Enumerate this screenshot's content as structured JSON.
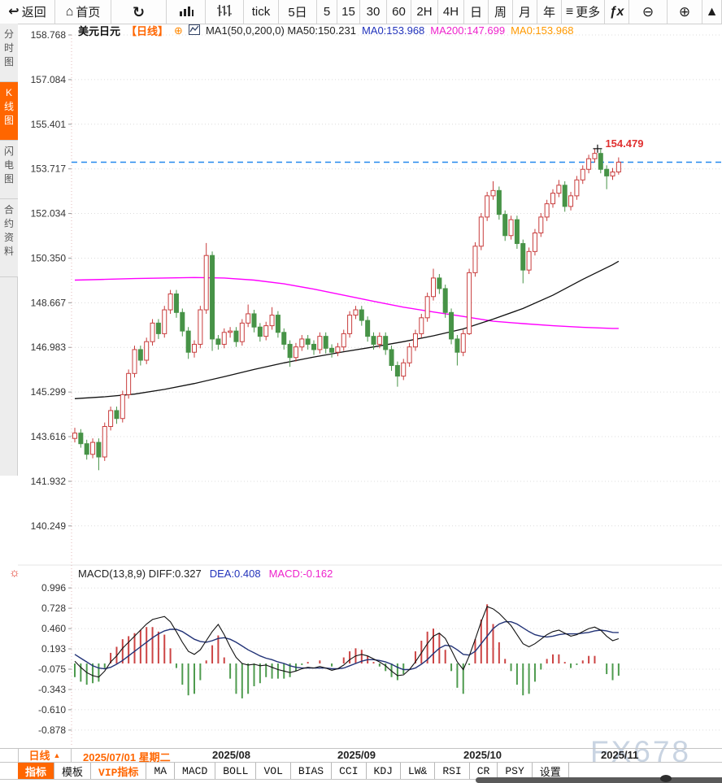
{
  "window": {
    "watermark": "FX678"
  },
  "toolbar": {
    "items": [
      {
        "name": "back-button",
        "icon": "back",
        "label": "返回"
      },
      {
        "name": "home-button",
        "icon": "home",
        "label": "首页"
      },
      {
        "name": "refresh-button",
        "icon": "refresh",
        "label": ""
      },
      {
        "name": "bar-chart-button",
        "icon": "bar-chart",
        "label": ""
      },
      {
        "name": "tick-chart-button",
        "icon": "candle-volume",
        "label": ""
      },
      {
        "name": "period-tick",
        "icon": "",
        "label": "tick"
      },
      {
        "name": "period-5day",
        "icon": "",
        "label": "5日"
      },
      {
        "name": "period-5min",
        "icon": "",
        "label": "5"
      },
      {
        "name": "period-15min",
        "icon": "",
        "label": "15"
      },
      {
        "name": "period-30min",
        "icon": "",
        "label": "30"
      },
      {
        "name": "period-60min",
        "icon": "",
        "label": "60"
      },
      {
        "name": "period-2h",
        "icon": "",
        "label": "2H"
      },
      {
        "name": "period-4h",
        "icon": "",
        "label": "4H"
      },
      {
        "name": "period-day",
        "icon": "",
        "label": "日"
      },
      {
        "name": "period-week",
        "icon": "",
        "label": "周"
      },
      {
        "name": "period-month",
        "icon": "",
        "label": "月"
      },
      {
        "name": "period-year",
        "icon": "",
        "label": "年"
      },
      {
        "name": "more-button",
        "icon": "menu",
        "label": "更多"
      },
      {
        "name": "indicator-fx-button",
        "icon": "fx",
        "label": ""
      },
      {
        "name": "zoom-out-button",
        "icon": "zoom-out",
        "label": ""
      },
      {
        "name": "zoom-in-button",
        "icon": "zoom-in",
        "label": ""
      },
      {
        "name": "draw-tool-button",
        "icon": "triangle",
        "label": ""
      }
    ]
  },
  "sidebar": {
    "items": [
      {
        "label": "分时图",
        "active": false
      },
      {
        "label": "K线图",
        "active": true
      },
      {
        "label": "闪电图",
        "active": false
      },
      {
        "label": "合约资料",
        "active": false
      }
    ]
  },
  "chart_header": {
    "symbol": "美元日元",
    "period_tag": "【日线】",
    "ma_settings": "MA1(50,0,200,0)  MA50:150.231",
    "ma0_blue": "MA0:153.968",
    "ma200": "MA200:147.699",
    "ma0_orange": "MA0:153.968"
  },
  "macd_header": {
    "title": "MACD(13,8,9)  DIFF:0.327",
    "dea": "DEA:0.408",
    "macd": "MACD:-0.162"
  },
  "status_bar": {
    "period": "日线",
    "arrow": "▲",
    "date": "2025/07/01 星期二"
  },
  "bottom_tabs": [
    {
      "label": "指标",
      "style": "selected"
    },
    {
      "label": "模板",
      "style": ""
    },
    {
      "label": "VIP指标",
      "style": "vip"
    },
    {
      "label": "MA",
      "style": ""
    },
    {
      "label": "MACD",
      "style": ""
    },
    {
      "label": "BOLL",
      "style": ""
    },
    {
      "label": "VOL",
      "style": ""
    },
    {
      "label": "BIAS",
      "style": ""
    },
    {
      "label": "CCI",
      "style": ""
    },
    {
      "label": "KDJ",
      "style": ""
    },
    {
      "label": "LW&",
      "style": ""
    },
    {
      "label": "RSI",
      "style": ""
    },
    {
      "label": "CR",
      "style": ""
    },
    {
      "label": "PSY",
      "style": ""
    },
    {
      "label": "设置",
      "style": ""
    }
  ],
  "chart_data": {
    "type": "candlestick+macd",
    "title": "美元日元 日线 (USD/JPY daily)",
    "y_axis_price": [
      158.768,
      157.084,
      155.401,
      153.717,
      152.034,
      150.35,
      148.667,
      146.983,
      145.299,
      143.616,
      141.932,
      140.249
    ],
    "y_axis_macd": [
      0.996,
      0.728,
      0.46,
      0.193,
      -0.075,
      -0.343,
      -0.61,
      -0.878
    ],
    "x_axis_months": [
      "2025/08",
      "2025/09",
      "2025/10",
      "2025/11"
    ],
    "current_price": 153.968,
    "high_annotation": "154.479",
    "high_annotation_value": 154.479,
    "legend_position": "top-left",
    "grid": "dotted-horizontal",
    "candles": [
      [
        143.55,
        143.95,
        143.4,
        143.75
      ],
      [
        143.75,
        143.9,
        143.2,
        143.35
      ],
      [
        143.35,
        143.5,
        142.75,
        142.95
      ],
      [
        142.95,
        143.55,
        142.8,
        143.4
      ],
      [
        143.4,
        143.55,
        142.35,
        142.85
      ],
      [
        142.85,
        144.15,
        142.7,
        144.0
      ],
      [
        144.0,
        144.75,
        143.85,
        144.6
      ],
      [
        144.6,
        144.75,
        144.1,
        144.3
      ],
      [
        144.3,
        145.35,
        144.15,
        145.2
      ],
      [
        145.2,
        146.15,
        145.05,
        146.0
      ],
      [
        146.0,
        147.05,
        145.85,
        146.9
      ],
      [
        146.9,
        147.05,
        146.3,
        146.5
      ],
      [
        146.5,
        147.35,
        146.35,
        147.2
      ],
      [
        147.2,
        148.05,
        147.05,
        147.9
      ],
      [
        147.9,
        148.05,
        147.3,
        147.5
      ],
      [
        147.5,
        148.55,
        147.35,
        148.4
      ],
      [
        148.4,
        149.15,
        148.25,
        149.0
      ],
      [
        149.0,
        149.15,
        148.1,
        148.3
      ],
      [
        148.3,
        148.45,
        147.4,
        147.6
      ],
      [
        147.6,
        147.75,
        146.55,
        146.8
      ],
      [
        146.8,
        147.25,
        146.6,
        147.1
      ],
      [
        147.1,
        148.55,
        146.95,
        148.4
      ],
      [
        148.4,
        150.92,
        148.25,
        150.45
      ],
      [
        150.45,
        150.6,
        146.85,
        147.3
      ],
      [
        147.3,
        147.45,
        146.9,
        147.1
      ],
      [
        147.1,
        147.7,
        146.95,
        147.55
      ],
      [
        147.55,
        147.75,
        147.35,
        147.6
      ],
      [
        147.6,
        147.75,
        147.0,
        147.2
      ],
      [
        147.2,
        148.05,
        147.05,
        147.9
      ],
      [
        147.9,
        148.6,
        147.75,
        148.25
      ],
      [
        148.25,
        148.4,
        147.55,
        147.75
      ],
      [
        147.75,
        147.9,
        147.2,
        147.4
      ],
      [
        147.4,
        147.95,
        147.25,
        147.8
      ],
      [
        147.8,
        148.5,
        147.65,
        148.2
      ],
      [
        148.2,
        148.35,
        147.35,
        147.55
      ],
      [
        147.55,
        147.7,
        146.9,
        147.1
      ],
      [
        147.1,
        147.25,
        146.25,
        146.6
      ],
      [
        146.6,
        147.15,
        146.45,
        147.0
      ],
      [
        147.0,
        147.45,
        146.85,
        147.3
      ],
      [
        147.3,
        147.45,
        146.9,
        147.1
      ],
      [
        147.1,
        147.25,
        146.7,
        146.9
      ],
      [
        146.9,
        147.55,
        146.75,
        147.4
      ],
      [
        147.4,
        147.55,
        146.75,
        146.95
      ],
      [
        146.95,
        147.1,
        146.6,
        146.8
      ],
      [
        146.8,
        147.15,
        146.65,
        147.0
      ],
      [
        147.0,
        147.65,
        146.85,
        147.5
      ],
      [
        147.5,
        148.35,
        147.35,
        148.2
      ],
      [
        148.2,
        148.55,
        148.05,
        148.4
      ],
      [
        148.4,
        148.55,
        147.8,
        148.0
      ],
      [
        148.0,
        148.15,
        147.2,
        147.4
      ],
      [
        147.4,
        147.55,
        146.9,
        147.1
      ],
      [
        147.1,
        147.55,
        146.95,
        147.4
      ],
      [
        147.4,
        147.55,
        146.7,
        146.9
      ],
      [
        146.9,
        147.05,
        146.1,
        146.3
      ],
      [
        146.3,
        146.45,
        145.5,
        145.9
      ],
      [
        145.9,
        146.55,
        145.75,
        146.4
      ],
      [
        146.4,
        147.15,
        146.25,
        147.0
      ],
      [
        147.0,
        147.65,
        146.85,
        147.5
      ],
      [
        147.5,
        148.25,
        147.35,
        148.1
      ],
      [
        148.1,
        149.05,
        147.95,
        148.9
      ],
      [
        148.9,
        149.95,
        148.75,
        149.6
      ],
      [
        149.6,
        149.75,
        149.0,
        149.2
      ],
      [
        149.2,
        149.35,
        148.1,
        148.3
      ],
      [
        148.3,
        148.45,
        147.1,
        147.3
      ],
      [
        147.3,
        147.45,
        146.3,
        146.8
      ],
      [
        146.8,
        147.65,
        146.65,
        147.5
      ],
      [
        147.5,
        149.95,
        147.45,
        149.8
      ],
      [
        149.8,
        150.95,
        149.65,
        150.8
      ],
      [
        150.8,
        152.05,
        150.65,
        151.9
      ],
      [
        151.9,
        152.85,
        151.75,
        152.7
      ],
      [
        152.7,
        153.25,
        152.55,
        152.9
      ],
      [
        152.9,
        153.05,
        151.8,
        152.0
      ],
      [
        152.0,
        152.15,
        151.0,
        151.2
      ],
      [
        151.2,
        151.95,
        151.05,
        151.8
      ],
      [
        151.8,
        151.95,
        150.7,
        150.9
      ],
      [
        150.9,
        151.05,
        149.4,
        149.9
      ],
      [
        149.9,
        150.75,
        149.75,
        150.6
      ],
      [
        150.6,
        151.45,
        150.45,
        151.3
      ],
      [
        151.3,
        152.05,
        151.15,
        151.9
      ],
      [
        151.9,
        152.55,
        151.75,
        152.4
      ],
      [
        152.4,
        152.95,
        152.25,
        152.8
      ],
      [
        152.8,
        153.3,
        152.65,
        153.1
      ],
      [
        153.1,
        153.25,
        152.1,
        152.3
      ],
      [
        152.3,
        152.85,
        152.15,
        152.7
      ],
      [
        152.7,
        153.45,
        152.55,
        153.3
      ],
      [
        153.3,
        153.85,
        153.15,
        153.7
      ],
      [
        153.7,
        154.25,
        153.55,
        154.1
      ],
      [
        154.1,
        154.479,
        153.95,
        154.3
      ],
      [
        154.3,
        154.45,
        153.55,
        153.7
      ],
      [
        153.7,
        153.85,
        152.95,
        153.45
      ],
      [
        153.45,
        153.75,
        153.3,
        153.6
      ],
      [
        153.6,
        154.15,
        153.5,
        153.97
      ]
    ],
    "ma50": {
      "indices": [
        0,
        5,
        10,
        15,
        20,
        25,
        30,
        35,
        40,
        45,
        50,
        55,
        60,
        65,
        70,
        75,
        80,
        85,
        90,
        91
      ],
      "values": [
        145.05,
        145.12,
        145.22,
        145.4,
        145.62,
        145.88,
        146.15,
        146.4,
        146.62,
        146.82,
        147.0,
        147.2,
        147.42,
        147.68,
        148.05,
        148.45,
        148.95,
        149.55,
        150.1,
        150.231
      ]
    },
    "ma200": {
      "indices": [
        0,
        5,
        10,
        15,
        20,
        25,
        30,
        35,
        40,
        45,
        50,
        55,
        60,
        65,
        70,
        75,
        80,
        85,
        90,
        91
      ],
      "values": [
        149.52,
        149.55,
        149.58,
        149.6,
        149.62,
        149.6,
        149.52,
        149.38,
        149.18,
        148.95,
        148.72,
        148.5,
        148.32,
        148.15,
        147.97,
        147.88,
        147.8,
        147.74,
        147.7,
        147.699
      ]
    },
    "macd": {
      "histogram_rule": "2*(diff-dea)",
      "diff": [
        0.03,
        -0.05,
        -0.12,
        -0.16,
        -0.18,
        -0.1,
        0.02,
        0.1,
        0.2,
        0.28,
        0.36,
        0.44,
        0.52,
        0.58,
        0.6,
        0.62,
        0.55,
        0.42,
        0.28,
        0.16,
        0.12,
        0.18,
        0.3,
        0.42,
        0.515,
        0.38,
        0.22,
        0.08,
        0.0,
        -0.02,
        -0.01,
        -0.03,
        -0.02,
        -0.05,
        -0.08,
        -0.1,
        -0.12,
        -0.1,
        -0.07,
        -0.05,
        -0.06,
        -0.04,
        -0.06,
        -0.09,
        -0.07,
        -0.02,
        0.05,
        0.1,
        0.12,
        0.1,
        0.06,
        0.02,
        -0.03,
        -0.1,
        -0.16,
        -0.15,
        -0.08,
        0.02,
        0.14,
        0.26,
        0.36,
        0.4,
        0.33,
        0.18,
        0.02,
        -0.08,
        0.1,
        0.32,
        0.55,
        0.75,
        0.72,
        0.66,
        0.58,
        0.5,
        0.38,
        0.26,
        0.22,
        0.26,
        0.32,
        0.38,
        0.42,
        0.44,
        0.4,
        0.36,
        0.38,
        0.42,
        0.46,
        0.48,
        0.44,
        0.36,
        0.3,
        0.327
      ],
      "dea": [
        0.12,
        0.07,
        0.02,
        -0.03,
        -0.06,
        -0.07,
        -0.05,
        -0.01,
        0.04,
        0.1,
        0.16,
        0.22,
        0.28,
        0.34,
        0.39,
        0.43,
        0.45,
        0.45,
        0.42,
        0.37,
        0.32,
        0.29,
        0.28,
        0.3,
        0.33,
        0.34,
        0.32,
        0.28,
        0.23,
        0.18,
        0.14,
        0.1,
        0.07,
        0.05,
        0.02,
        0.0,
        -0.03,
        -0.05,
        -0.06,
        -0.06,
        -0.06,
        -0.06,
        -0.06,
        -0.07,
        -0.07,
        -0.06,
        -0.03,
        0.0,
        0.03,
        0.05,
        0.05,
        0.04,
        0.02,
        -0.01,
        -0.05,
        -0.08,
        -0.08,
        -0.06,
        -0.01,
        0.05,
        0.13,
        0.2,
        0.24,
        0.23,
        0.18,
        0.12,
        0.11,
        0.16,
        0.26,
        0.36,
        0.46,
        0.52,
        0.55,
        0.55,
        0.52,
        0.47,
        0.42,
        0.38,
        0.36,
        0.35,
        0.36,
        0.38,
        0.39,
        0.39,
        0.39,
        0.4,
        0.41,
        0.43,
        0.44,
        0.43,
        0.41,
        0.408
      ]
    },
    "colors": {
      "up_candle": "#c83c3c",
      "down_candle": "#479347",
      "ma50_line": "#111111",
      "ma200_line": "#ff00ff",
      "diff_line": "#111111",
      "dea_line": "#223377",
      "hist_up": "#cc4444",
      "hist_down": "#4e9b4e",
      "current_price_line": "#2288ee",
      "annotation": "#e03030",
      "grid": "#dcdcdc",
      "axis_dotted": "#e3b8b8",
      "accent_orange": "#ff6600"
    }
  }
}
